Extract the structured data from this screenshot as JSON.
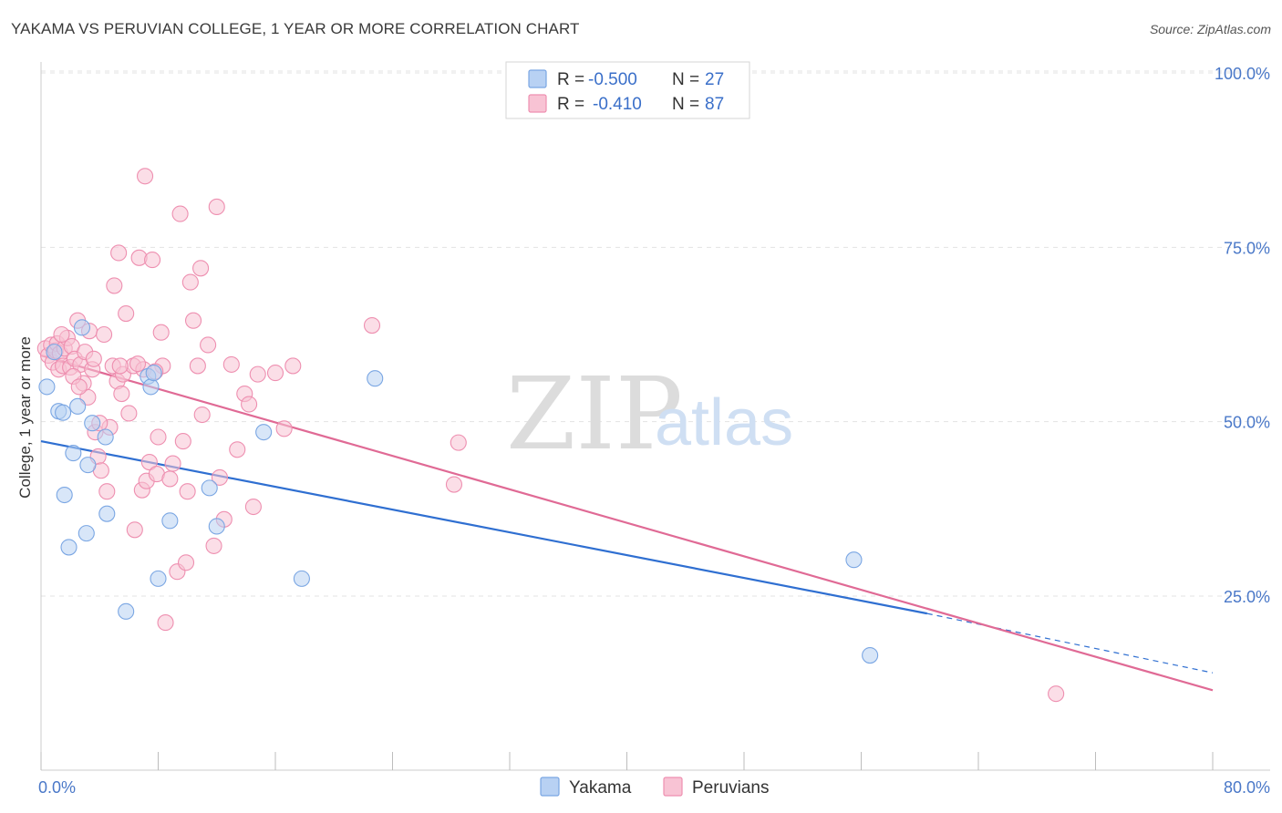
{
  "title": "YAKAMA VS PERUVIAN COLLEGE, 1 YEAR OR MORE CORRELATION CHART",
  "source": "Source: ZipAtlas.com",
  "colors": {
    "yakama_fill": "#b8d1f3",
    "yakama_stroke": "#7aa6e3",
    "yakama_line": "#2f6fd1",
    "peruvian_fill": "#f8c3d4",
    "peruvian_stroke": "#ee8fb0",
    "peruvian_line": "#e06a95",
    "tick_color": "#4a78c8"
  },
  "legend": {
    "r_label": "R =",
    "n_label": "N =",
    "rows": [
      {
        "series": "Yakama",
        "r": "-0.500",
        "n": "27"
      },
      {
        "series": "Peruvians",
        "r": "-0.410",
        "n": "87"
      }
    ]
  },
  "watermark": {
    "zip": "ZIP",
    "atlas": "atlas"
  },
  "chart_data": {
    "type": "scatter",
    "title": "YAKAMA VS PERUVIAN COLLEGE, 1 YEAR OR MORE CORRELATION CHART",
    "xlabel": "",
    "ylabel": "College, 1 year or more",
    "xlim": [
      0,
      80
    ],
    "ylim": [
      0,
      105
    ],
    "x_tick_labels": [
      "0.0%",
      "80.0%"
    ],
    "y_ticks": [
      25,
      50,
      75,
      100
    ],
    "y_tick_labels": [
      "25.0%",
      "50.0%",
      "75.0%",
      "100.0%"
    ],
    "grid": true,
    "series": [
      {
        "name": "Yakama",
        "trend": {
          "x": [
            0,
            60.5
          ],
          "y": [
            47.2,
            22.5
          ],
          "dashed_to_x": 80,
          "dashed_to_y": 14.0
        },
        "points": [
          [
            0.4,
            55.0
          ],
          [
            1.2,
            51.5
          ],
          [
            1.5,
            51.3
          ],
          [
            1.6,
            39.5
          ],
          [
            1.9,
            32.0
          ],
          [
            2.2,
            45.5
          ],
          [
            2.5,
            52.2
          ],
          [
            2.8,
            63.5
          ],
          [
            3.1,
            34.0
          ],
          [
            3.2,
            43.8
          ],
          [
            3.5,
            49.8
          ],
          [
            4.4,
            47.8
          ],
          [
            4.5,
            36.8
          ],
          [
            5.8,
            22.8
          ],
          [
            7.3,
            56.5
          ],
          [
            7.5,
            55.0
          ],
          [
            7.7,
            57.0
          ],
          [
            8.0,
            27.5
          ],
          [
            8.8,
            35.8
          ],
          [
            11.5,
            40.5
          ],
          [
            12.0,
            35.0
          ],
          [
            15.2,
            48.5
          ],
          [
            17.8,
            27.5
          ],
          [
            22.8,
            56.2
          ],
          [
            55.5,
            30.2
          ],
          [
            56.6,
            16.5
          ],
          [
            0.9,
            60.0
          ]
        ]
      },
      {
        "name": "Peruvians",
        "trend": {
          "x": [
            0,
            80
          ],
          "y": [
            59.5,
            11.5
          ]
        },
        "points": [
          [
            0.3,
            60.5
          ],
          [
            0.5,
            59.5
          ],
          [
            0.7,
            61.0
          ],
          [
            0.8,
            58.5
          ],
          [
            1.0,
            60.2
          ],
          [
            1.1,
            61.2
          ],
          [
            1.2,
            57.5
          ],
          [
            1.3,
            59.8
          ],
          [
            1.5,
            58.0
          ],
          [
            1.6,
            60.5
          ],
          [
            1.8,
            62.0
          ],
          [
            2.0,
            57.8
          ],
          [
            2.1,
            60.8
          ],
          [
            2.3,
            59.0
          ],
          [
            2.5,
            64.5
          ],
          [
            2.7,
            58.2
          ],
          [
            2.9,
            55.5
          ],
          [
            3.0,
            60.0
          ],
          [
            3.2,
            53.5
          ],
          [
            3.3,
            63.0
          ],
          [
            3.5,
            57.5
          ],
          [
            3.7,
            48.5
          ],
          [
            3.9,
            45.0
          ],
          [
            4.1,
            43.0
          ],
          [
            4.3,
            62.5
          ],
          [
            4.5,
            40.0
          ],
          [
            4.7,
            49.2
          ],
          [
            4.9,
            58.0
          ],
          [
            5.0,
            69.5
          ],
          [
            5.2,
            55.8
          ],
          [
            5.3,
            74.2
          ],
          [
            5.5,
            54.0
          ],
          [
            5.6,
            56.8
          ],
          [
            5.8,
            65.5
          ],
          [
            6.0,
            51.2
          ],
          [
            6.3,
            58.0
          ],
          [
            6.4,
            34.5
          ],
          [
            6.7,
            73.5
          ],
          [
            6.9,
            40.2
          ],
          [
            7.0,
            57.5
          ],
          [
            7.1,
            85.2
          ],
          [
            7.2,
            41.5
          ],
          [
            7.4,
            44.2
          ],
          [
            7.6,
            73.2
          ],
          [
            7.9,
            42.5
          ],
          [
            8.0,
            47.8
          ],
          [
            8.2,
            62.8
          ],
          [
            8.3,
            58.0
          ],
          [
            8.5,
            21.2
          ],
          [
            8.8,
            41.8
          ],
          [
            9.0,
            44.0
          ],
          [
            9.3,
            28.5
          ],
          [
            9.5,
            79.8
          ],
          [
            9.7,
            47.2
          ],
          [
            9.9,
            29.8
          ],
          [
            10.2,
            70.0
          ],
          [
            10.4,
            64.5
          ],
          [
            10.7,
            58.0
          ],
          [
            10.9,
            72.0
          ],
          [
            11.0,
            51.0
          ],
          [
            11.4,
            61.0
          ],
          [
            11.8,
            32.2
          ],
          [
            12.0,
            80.8
          ],
          [
            12.2,
            42.0
          ],
          [
            12.5,
            36.0
          ],
          [
            13.0,
            58.2
          ],
          [
            13.4,
            46.0
          ],
          [
            13.9,
            54.0
          ],
          [
            14.2,
            52.5
          ],
          [
            14.5,
            37.8
          ],
          [
            14.8,
            56.8
          ],
          [
            16.0,
            57.0
          ],
          [
            16.6,
            49.0
          ],
          [
            17.2,
            58.0
          ],
          [
            22.6,
            63.8
          ],
          [
            28.2,
            41.0
          ],
          [
            28.5,
            47.0
          ],
          [
            69.3,
            11.0
          ],
          [
            1.4,
            62.5
          ],
          [
            2.2,
            56.5
          ],
          [
            4.0,
            49.8
          ],
          [
            6.6,
            58.3
          ],
          [
            7.8,
            57.2
          ],
          [
            10.0,
            40.0
          ],
          [
            3.6,
            59.0
          ],
          [
            5.4,
            58.0
          ],
          [
            2.6,
            55.0
          ]
        ]
      }
    ]
  },
  "bottom_legend": [
    "Yakama",
    "Peruvians"
  ]
}
